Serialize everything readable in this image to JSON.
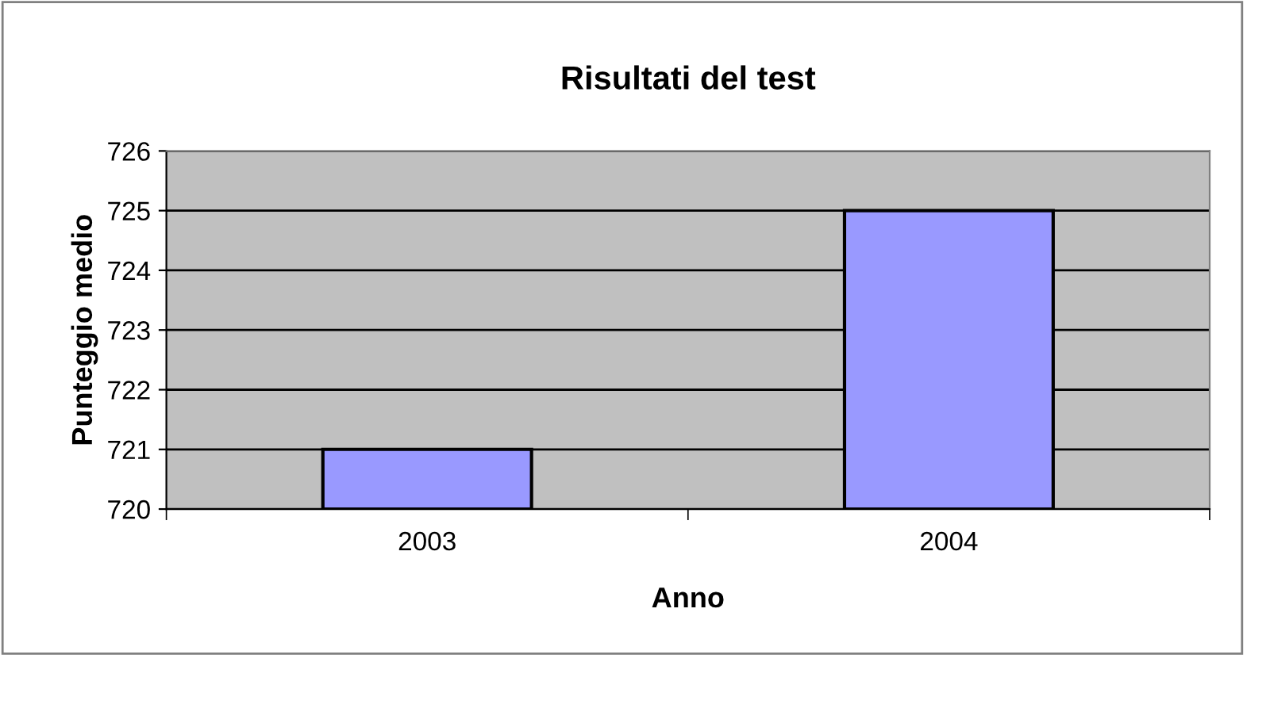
{
  "chart_data": {
    "type": "bar",
    "title": "Risultati del test",
    "xlabel": "Anno",
    "ylabel": "Punteggio medio",
    "categories": [
      "2003",
      "2004"
    ],
    "values": [
      721,
      725
    ],
    "color": "#9999ff",
    "ylim": [
      720,
      726
    ],
    "yticks": [
      720,
      721,
      722,
      723,
      724,
      725,
      726
    ],
    "grid": "y"
  }
}
